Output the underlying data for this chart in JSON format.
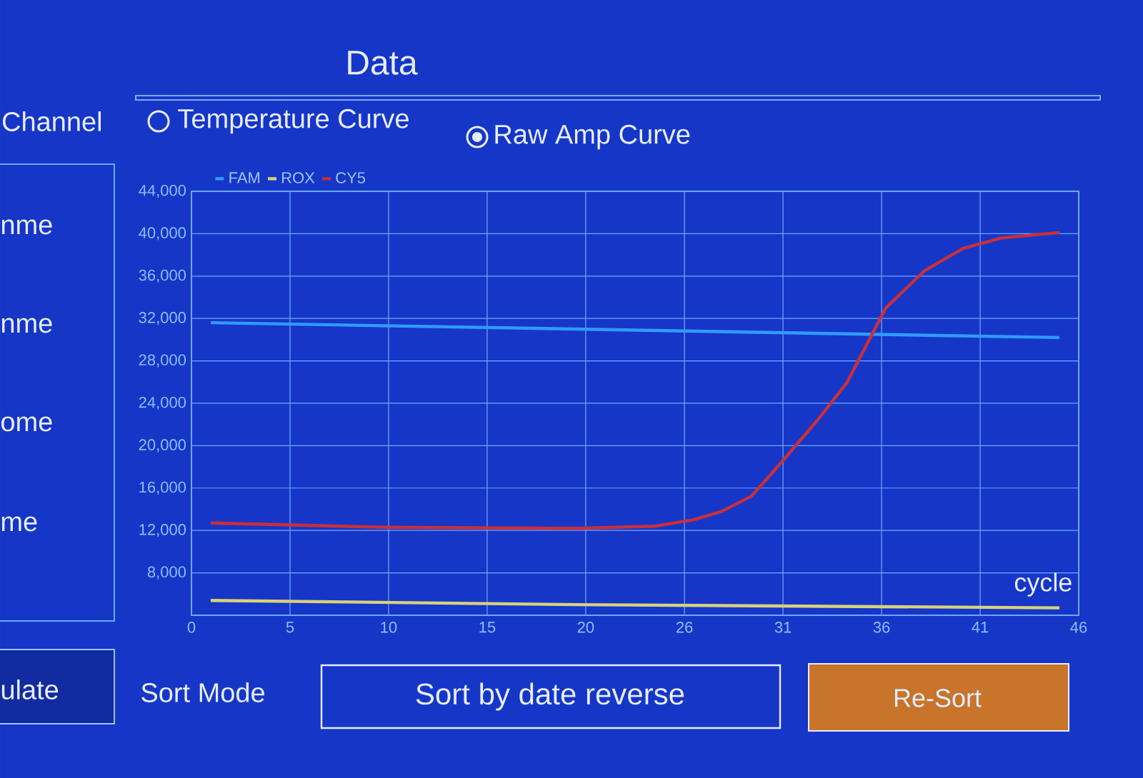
{
  "chart_data": {
    "type": "line",
    "title": "Data",
    "xlabel": "cycle",
    "annotations": [
      "Channel",
      "Temperature Curve",
      "Raw Amp Curve",
      "nme",
      "nme",
      "ome",
      "me",
      "ulate",
      "Sort Mode",
      "Sort by date reverse",
      "Re-Sort"
    ],
    "xlim": [
      0,
      46
    ],
    "ylim": [
      4000,
      44000
    ],
    "xticks": [
      0,
      {
        "value": 5.11,
        "label": "5"
      },
      {
        "value": 10.22,
        "label": "10"
      },
      {
        "value": 15.33,
        "label": "15"
      },
      {
        "value": 20.44,
        "label": "20"
      },
      {
        "value": 25.56,
        "label": "26"
      },
      {
        "value": 30.67,
        "label": "31"
      },
      {
        "value": 35.78,
        "label": "36"
      },
      {
        "value": 40.89,
        "label": "41"
      },
      46
    ],
    "yticks": [
      {
        "value": 4000,
        "label": null
      },
      {
        "value": 8000,
        "label": "8,000"
      },
      {
        "value": 12000,
        "label": "12,000"
      },
      {
        "value": 16000,
        "label": "16,000"
      },
      {
        "value": 20000,
        "label": "20,000"
      },
      {
        "value": 24000,
        "label": "24,000"
      },
      {
        "value": 28000,
        "label": "28,000"
      },
      {
        "value": 32000,
        "label": "32,000"
      },
      {
        "value": 36000,
        "label": "36,000"
      },
      {
        "value": 40000,
        "label": "40,000"
      },
      {
        "value": 44000,
        "label": "44,000"
      }
    ],
    "grid": true,
    "legend": "top left",
    "marker": "none",
    "line_style": "solid",
    "series": [
      {
        "name": "FAM",
        "color": "#2f9bff",
        "x": [
          1,
          45
        ],
        "values": [
          31600,
          30200
        ]
      },
      {
        "name": "ROX",
        "color": "#d8d27a",
        "x": [
          1,
          20,
          45
        ],
        "values": [
          5400,
          5000,
          4700
        ]
      },
      {
        "name": "CY5",
        "color": "#c8303a",
        "x": [
          1,
          10,
          20,
          24,
          26,
          27.5,
          29,
          30,
          31,
          32.5,
          34,
          35,
          36,
          38,
          40,
          42,
          45
        ],
        "values": [
          12700,
          12300,
          12200,
          12400,
          13000,
          13800,
          15200,
          17200,
          19300,
          22500,
          26000,
          29500,
          33000,
          36500,
          38600,
          39600,
          40100
        ]
      }
    ]
  }
}
